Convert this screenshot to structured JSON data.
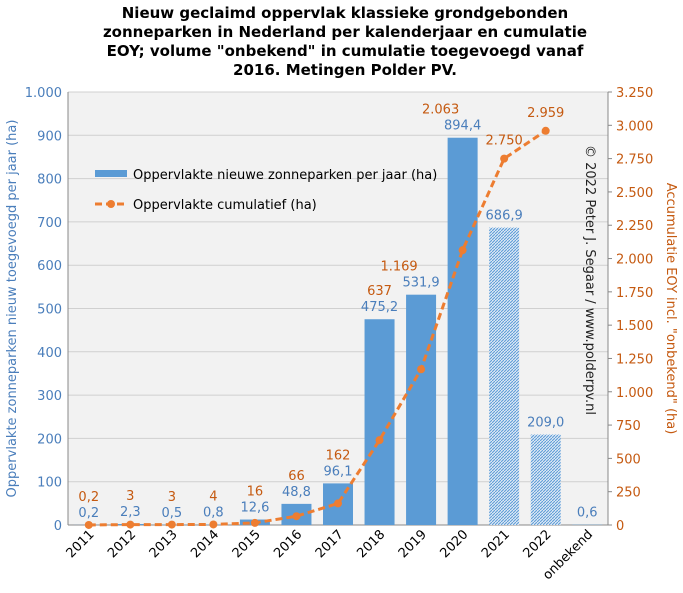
{
  "chart_data": {
    "type": "bar_line",
    "title": [
      "Nieuw geclaimd oppervlak klassieke grondgebonden",
      "zonneparken in Nederland per kalenderjaar en cumulatie",
      "EOY; volume \"onbekend\" in cumulatie toegevoegd vanaf",
      "2016. Metingen Polder PV."
    ],
    "ylabel": "Oppervlakte zonneparken nieuw toegevoegd per jaar (ha)",
    "y2label": "Accumulatie EOY incl. \"onbekend\" (ha)",
    "annotation": "© 2022 Peter J. Segaar / www.polderpv.nl",
    "categories": [
      "2011",
      "2012",
      "2013",
      "2014",
      "2015",
      "2016",
      "2017",
      "2018",
      "2019",
      "2020",
      "2021",
      "2022",
      "onbekend"
    ],
    "series": [
      {
        "name": "Oppervlakte nieuwe zonneparken per jaar (ha)",
        "color": "#5b9bd5",
        "label_color": "#4a7ebb",
        "values": [
          0.2,
          2.3,
          0.5,
          0.8,
          12.6,
          48.8,
          96.1,
          475.2,
          531.9,
          894.4,
          686.9,
          209.0,
          0.6
        ],
        "value_labels": [
          "0,2",
          "2,3",
          "0,5",
          "0,8",
          "12,6",
          "48,8",
          "96,1",
          "475,2",
          "531,9",
          "894,4",
          "686,9",
          "209,0",
          "0,6"
        ],
        "bar_styles": [
          "solid",
          "solid",
          "solid",
          "solid",
          "solid",
          "solid",
          "solid",
          "solid",
          "solid",
          "solid",
          "hatched",
          "hatched",
          "solid"
        ]
      },
      {
        "name": "Oppervlakte cumulatief (ha)",
        "color": "#ed7d31",
        "label_color": "#c55a11",
        "axis": "y2",
        "values": [
          0.2,
          3,
          3,
          4,
          16,
          66,
          162,
          637,
          1169,
          2063,
          2750,
          2959,
          null
        ],
        "value_labels": [
          "0,2",
          "3",
          "3",
          "4",
          "16",
          "66",
          "162",
          "637",
          "1.169",
          "2.063",
          "2.750",
          "2.959",
          null
        ]
      }
    ],
    "ylim": [
      0,
      1000
    ],
    "yticks": [
      0,
      100,
      200,
      300,
      400,
      500,
      600,
      700,
      800,
      900,
      {
        "value": 1000,
        "label": "1.000"
      }
    ],
    "y2lim": [
      0,
      3250
    ],
    "y2ticks": [
      0,
      250,
      500,
      750,
      {
        "value": 1000,
        "label": "1.000"
      },
      {
        "value": 1250,
        "label": "1.250"
      },
      {
        "value": 1500,
        "label": "1.500"
      },
      {
        "value": 1750,
        "label": "1.750"
      },
      {
        "value": 2000,
        "label": "2.000"
      },
      {
        "value": 2250,
        "label": "2.250"
      },
      {
        "value": 2500,
        "label": "2.500"
      },
      {
        "value": 2750,
        "label": "2.750"
      },
      {
        "value": 3000,
        "label": "3.000"
      },
      {
        "value": 3250,
        "label": "3.250"
      }
    ],
    "grid": true
  }
}
